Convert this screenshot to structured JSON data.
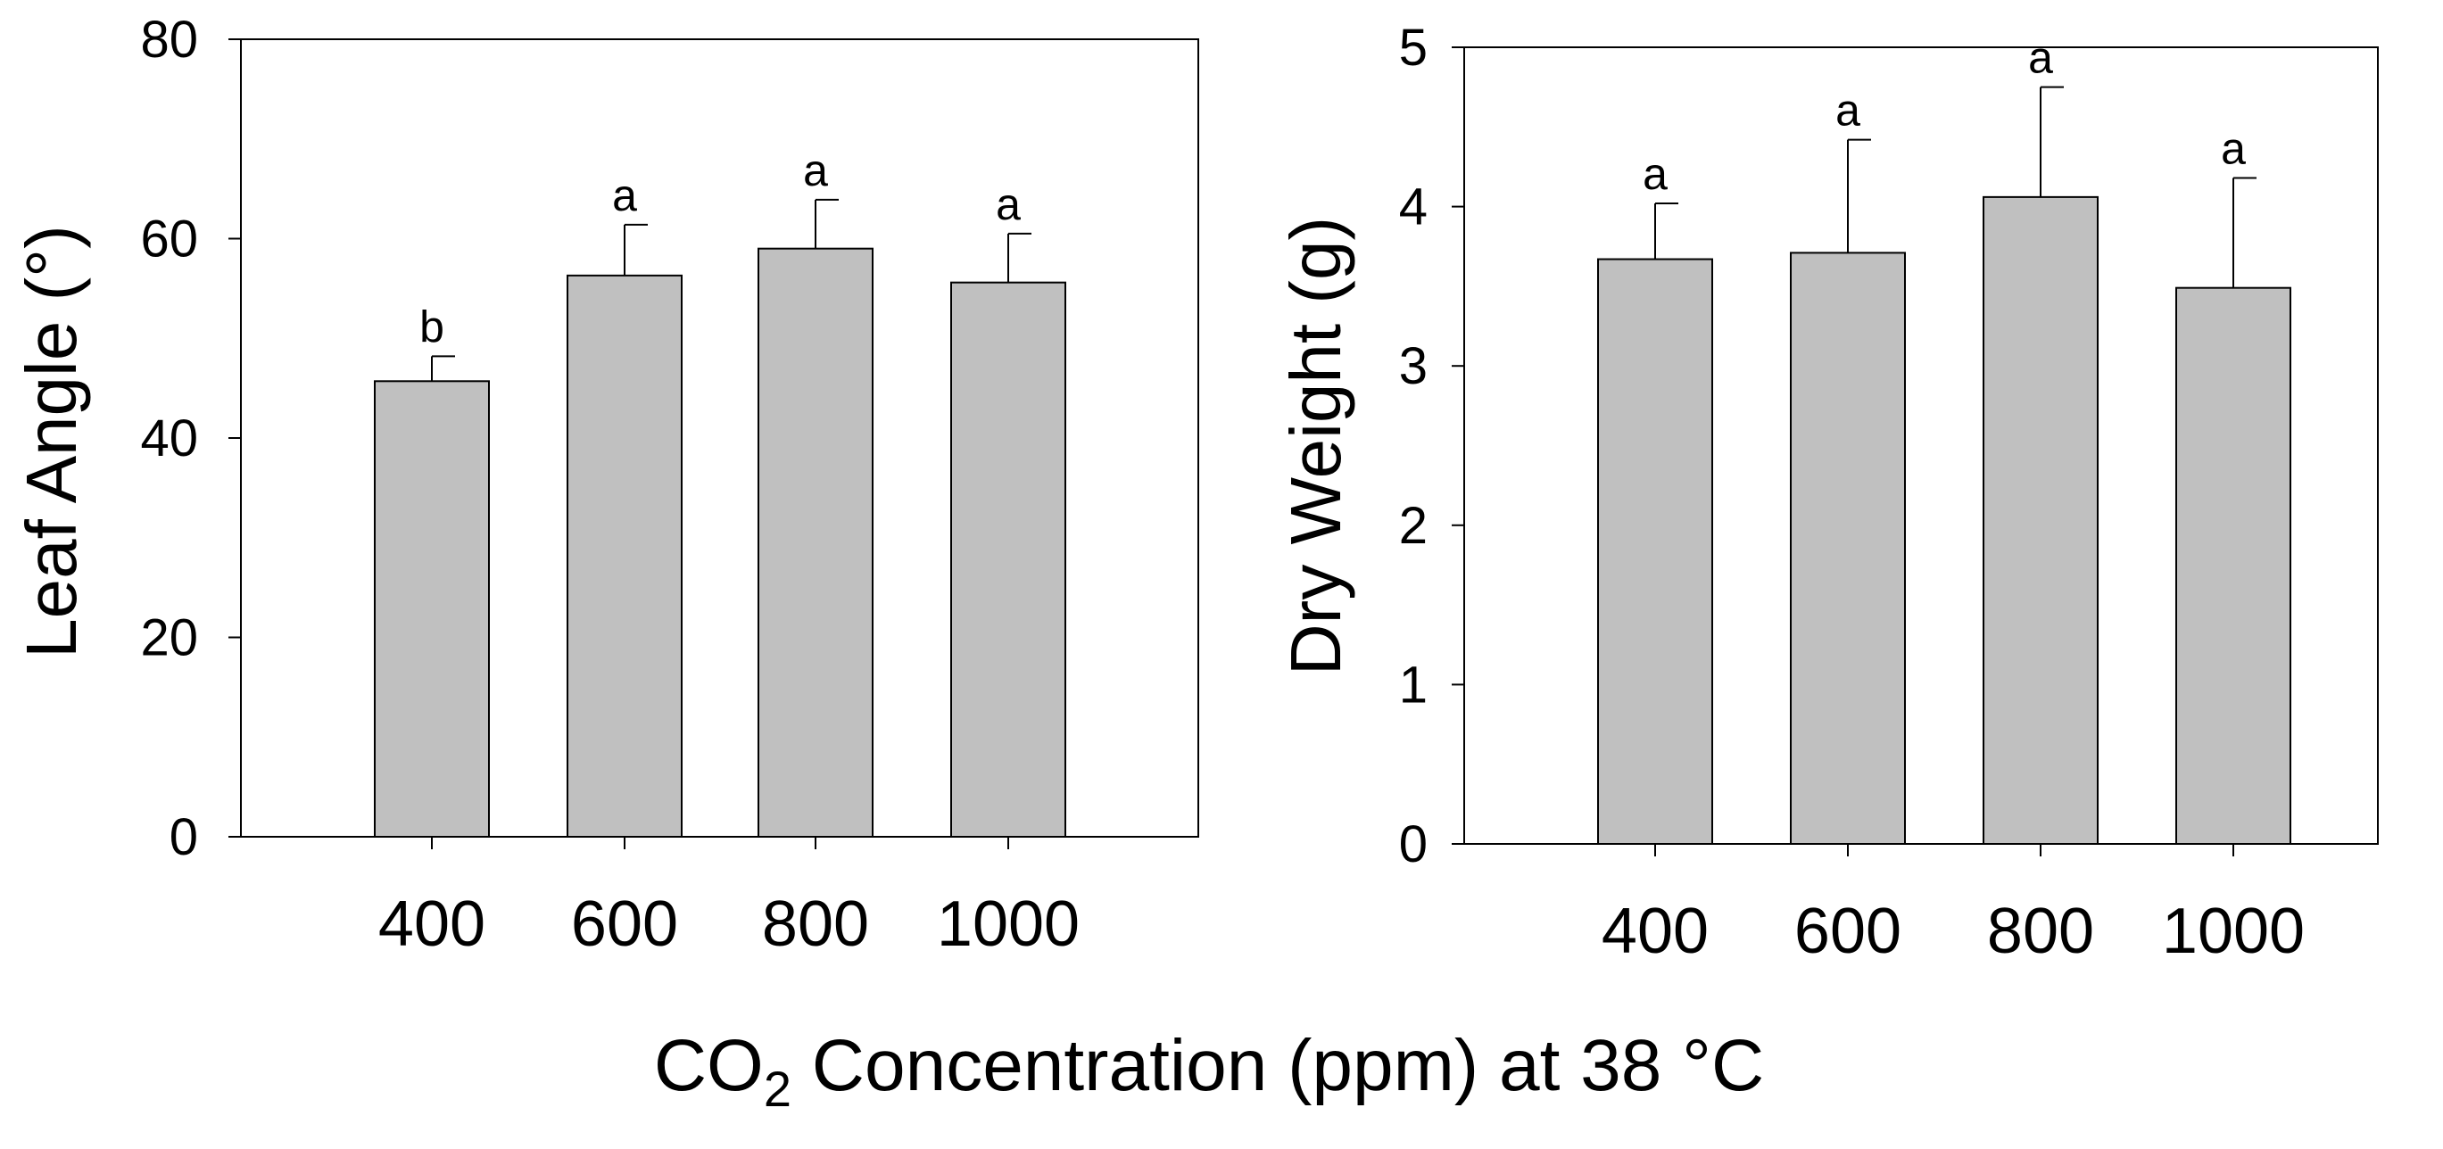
{
  "chart_data": [
    {
      "type": "bar",
      "panel": "left",
      "categories": [
        "400",
        "600",
        "800",
        "1000"
      ],
      "values": [
        45.7,
        56.3,
        59.0,
        55.6
      ],
      "errors": [
        2.5,
        5.1,
        4.9,
        4.9
      ],
      "letters": [
        "b",
        "a",
        "a",
        "a"
      ],
      "ylabel": "Leaf Angle (°)",
      "ylim": [
        0,
        80
      ],
      "yticks": [
        0,
        20,
        40,
        60,
        80
      ],
      "bar_color": "#c0c0c0",
      "grid": false
    },
    {
      "type": "bar",
      "panel": "right",
      "categories": [
        "400",
        "600",
        "800",
        "1000"
      ],
      "values": [
        3.67,
        3.71,
        4.06,
        3.49
      ],
      "errors": [
        0.35,
        0.71,
        0.69,
        0.69
      ],
      "letters": [
        "a",
        "a",
        "a",
        "a"
      ],
      "ylabel": "Dry Weight (g)",
      "ylim": [
        0,
        5
      ],
      "yticks": [
        0,
        1,
        2,
        3,
        4,
        5
      ],
      "bar_color": "#c0c0c0",
      "grid": false
    }
  ],
  "shared_xlabel": {
    "prefix": "CO",
    "subscript": "2",
    "suffix": " Concentration (ppm) at 38 °C"
  }
}
